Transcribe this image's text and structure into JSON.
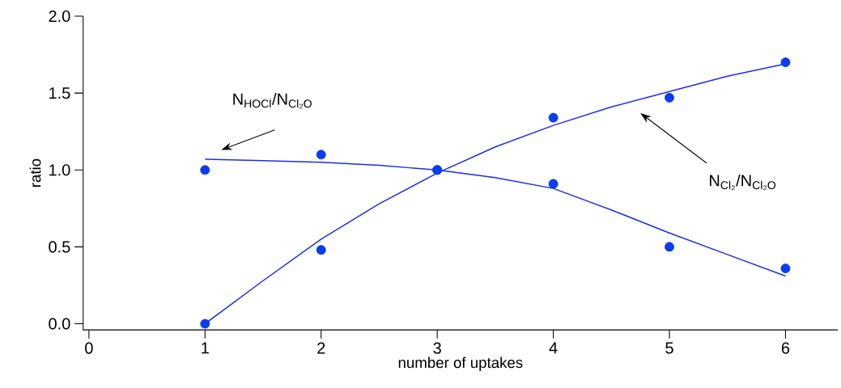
{
  "chart_data": {
    "type": "scatter",
    "xlabel": "number of uptakes",
    "ylabel": "ratio",
    "xlim": [
      -0.05,
      6.45
    ],
    "ylim": [
      -0.04,
      2.0
    ],
    "xticks": [
      0,
      1,
      2,
      3,
      4,
      5,
      6
    ],
    "yticks": [
      {
        "value": 0,
        "label": "0.0"
      },
      {
        "value": 0.5,
        "label": "0.5"
      },
      {
        "value": 1,
        "label": "1.0"
      },
      {
        "value": 1.5,
        "label": "1.5"
      },
      {
        "value": 2,
        "label": "2.0"
      }
    ],
    "x": [
      1,
      2,
      3,
      4,
      5,
      6
    ],
    "marker": "circle",
    "series": [
      {
        "color": "#0a3cf0",
        "values": [
          1.0,
          1.1,
          1.0,
          0.91,
          0.5,
          0.36
        ]
      },
      {
        "color": "#0a3cf0",
        "values": [
          0.0,
          0.48,
          1.0,
          1.34,
          1.47,
          1.7
        ]
      },
      {
        "type": "line",
        "color": "#1a2cf0",
        "marker": "none",
        "x": [
          1,
          1.5,
          2,
          2.5,
          3,
          3.5,
          4,
          4.5,
          5,
          5.5,
          6
        ],
        "values": [
          1.07,
          1.06,
          1.05,
          1.03,
          1.0,
          0.95,
          0.88,
          0.74,
          0.59,
          0.45,
          0.31
        ]
      },
      {
        "type": "line",
        "color": "#1a2cf0",
        "marker": "none",
        "x": [
          1,
          1.5,
          2,
          2.5,
          3,
          3.5,
          4,
          4.5,
          5,
          5.5,
          6
        ],
        "values": [
          0.0,
          0.28,
          0.55,
          0.78,
          0.98,
          1.15,
          1.29,
          1.41,
          1.51,
          1.61,
          1.69
        ]
      }
    ],
    "annotations": [
      "N$_{HOCl}$/N$_{Cl₂O}$",
      "N$_{Cl₂}$/N$_{Cl₂O}$"
    ]
  }
}
